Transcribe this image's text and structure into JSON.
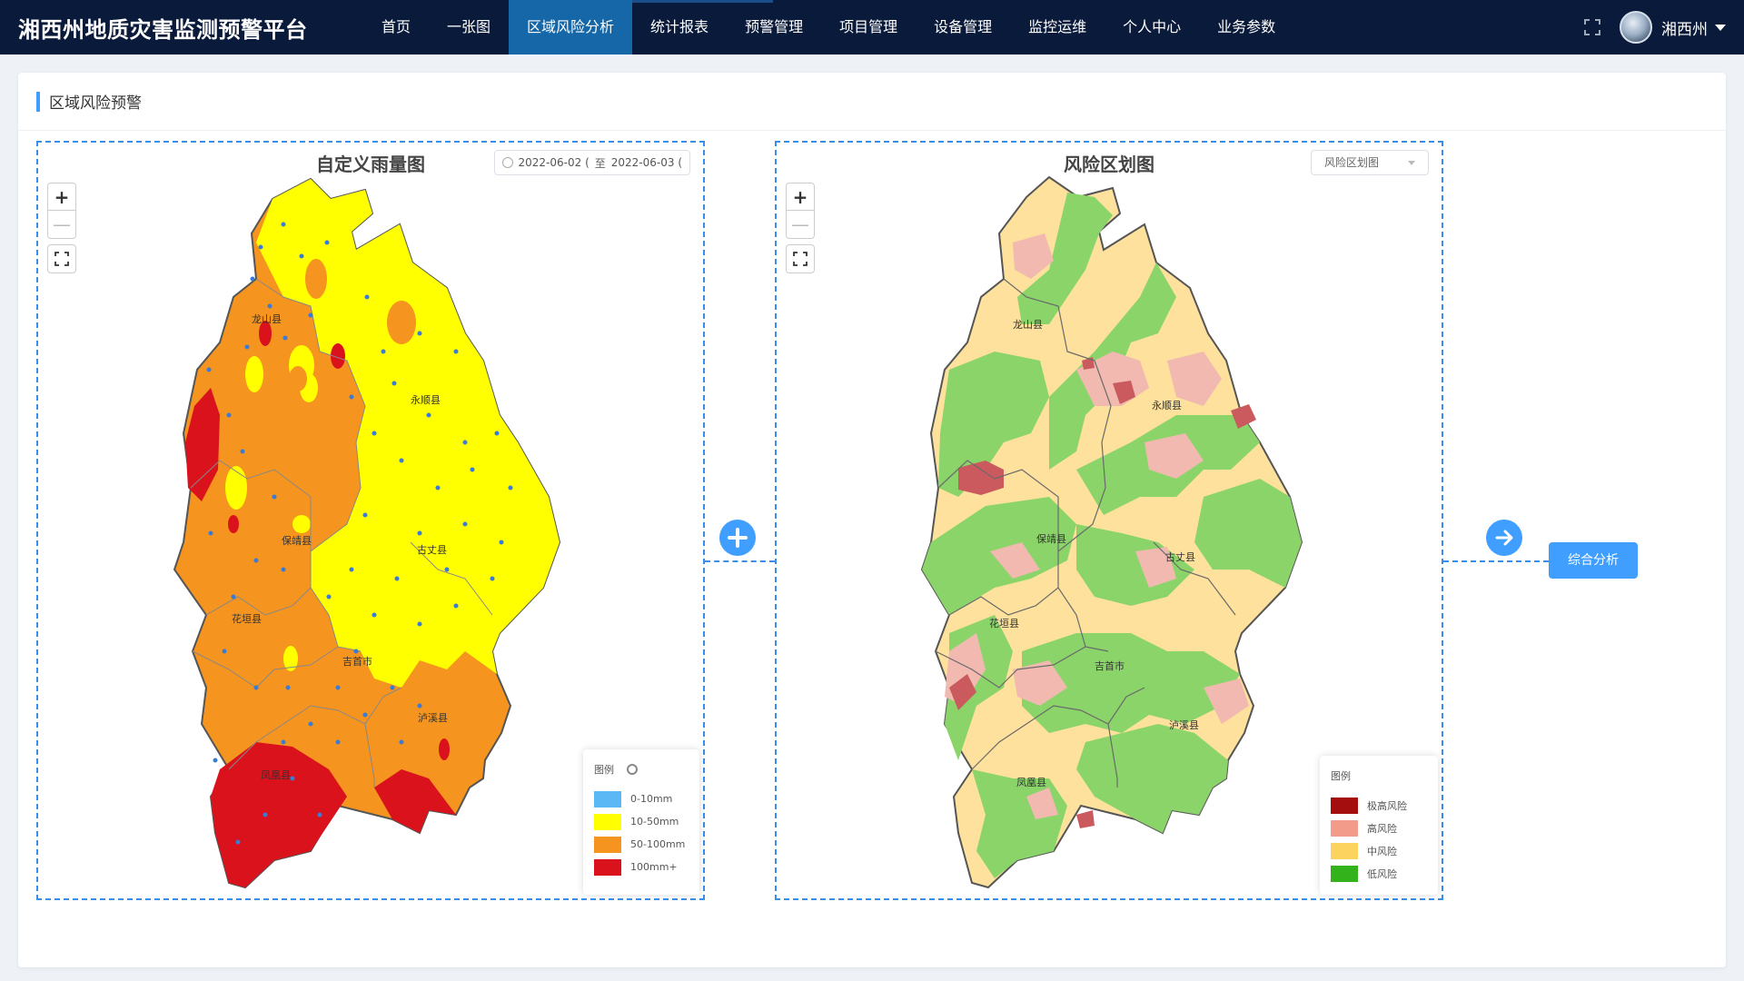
{
  "app": {
    "title": "湘西州地质灾害监测预警平台"
  },
  "nav": {
    "items": [
      "首页",
      "一张图",
      "区域风险分析",
      "统计报表",
      "预警管理",
      "项目管理",
      "设备管理",
      "监控运维",
      "个人中心",
      "业务参数"
    ],
    "active_index": 2
  },
  "user": {
    "name": "湘西州",
    "avatar_icon": "avatar-photo",
    "fullscreen_icon": "expand-icon"
  },
  "section": {
    "title": "区域风险预警"
  },
  "rain_map": {
    "title": "自定义雨量图",
    "date_start": "2022-06-02 (",
    "date_sep": "至",
    "date_end": "2022-06-03 (",
    "counties": [
      "龙山县",
      "永顺县",
      "保靖县",
      "古丈县",
      "花垣县",
      "吉首市",
      "泸溪县",
      "凤凰县"
    ],
    "legend": {
      "title": "图例",
      "items": [
        {
          "label": "0-10mm",
          "color": "#5cb8f5"
        },
        {
          "label": "10-50mm",
          "color": "#ffff00"
        },
        {
          "label": "50-100mm",
          "color": "#f5941e"
        },
        {
          "label": "100mm+",
          "color": "#d9121c"
        }
      ]
    }
  },
  "risk_map": {
    "title": "风险区划图",
    "select_value": "风险区划图",
    "counties": [
      "龙山县",
      "永顺县",
      "保靖县",
      "古丈县",
      "花垣县",
      "吉首市",
      "泸溪县",
      "凤凰县"
    ],
    "legend": {
      "title": "图例",
      "items": [
        {
          "label": "极高风险",
          "color": "#a50e0e"
        },
        {
          "label": "高风险",
          "color": "#f39b8a"
        },
        {
          "label": "中风险",
          "color": "#fdd35f"
        },
        {
          "label": "低风险",
          "color": "#34b21c"
        }
      ]
    }
  },
  "controls": {
    "zoom_in": "+",
    "zoom_out": "—"
  },
  "actions": {
    "analysis_button": "综合分析",
    "add_icon": "plus-circle-icon",
    "next_icon": "arrow-right-circle-icon"
  }
}
